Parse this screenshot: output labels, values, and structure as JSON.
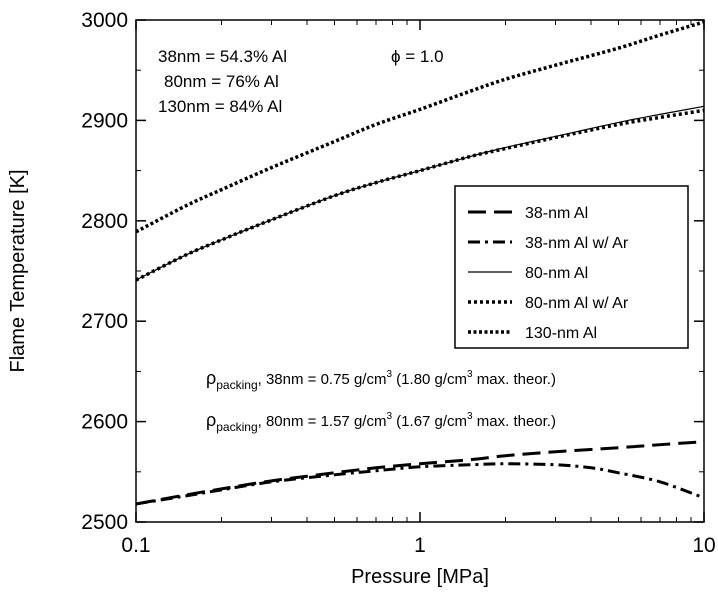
{
  "chart_data": {
    "type": "line",
    "xlabel": "Pressure [MPa]",
    "ylabel": "Flame Temperature [K]",
    "xscale": "log",
    "xlim": [
      0.1,
      10
    ],
    "ylim": [
      2500,
      3000
    ],
    "xticks": [
      0.1,
      1,
      10
    ],
    "xtick_labels": [
      "0.1",
      "1",
      "10"
    ],
    "yticks": [
      2500,
      2600,
      2700,
      2800,
      2900,
      3000
    ],
    "ytick_labels": [
      "2500",
      "2600",
      "2700",
      "2800",
      "2900",
      "3000"
    ],
    "grid": false,
    "legend_position": "right",
    "series": [
      {
        "name": "38-nm Al",
        "style": "long-dash",
        "x": [
          0.1,
          0.15,
          0.2,
          0.3,
          0.5,
          0.7,
          1,
          1.5,
          2,
          3,
          5,
          7,
          10
        ],
        "y": [
          2518,
          2527,
          2533,
          2541,
          2549,
          2554,
          2558,
          2562,
          2566,
          2570,
          2574,
          2577,
          2580
        ]
      },
      {
        "name": "38-nm Al w/ Ar",
        "style": "dash-dot",
        "x": [
          0.1,
          0.15,
          0.2,
          0.3,
          0.5,
          0.7,
          1,
          1.5,
          2,
          3,
          4,
          5,
          7,
          10
        ],
        "y": [
          2518,
          2526,
          2532,
          2540,
          2547,
          2551,
          2555,
          2557,
          2558,
          2557,
          2554,
          2549,
          2540,
          2524
        ]
      },
      {
        "name": "80-nm Al",
        "style": "thin-solid",
        "x": [
          0.1,
          0.15,
          0.2,
          0.3,
          0.5,
          0.7,
          1,
          1.5,
          2,
          3,
          5,
          7,
          10
        ],
        "y": [
          2741,
          2766,
          2781,
          2801,
          2825,
          2838,
          2850,
          2864,
          2873,
          2884,
          2898,
          2906,
          2914
        ]
      },
      {
        "name": "80-nm Al w/ Ar",
        "style": "dotted-thick",
        "x": [
          0.1,
          0.15,
          0.2,
          0.3,
          0.5,
          0.7,
          1,
          1.5,
          2,
          3,
          5,
          7,
          10
        ],
        "y": [
          2741,
          2766,
          2781,
          2801,
          2825,
          2838,
          2850,
          2864,
          2872,
          2883,
          2896,
          2903,
          2910
        ]
      },
      {
        "name": "130-nm Al",
        "style": "dotted",
        "x": [
          0.1,
          0.15,
          0.2,
          0.3,
          0.5,
          0.7,
          1,
          1.5,
          2,
          3,
          5,
          7,
          10
        ],
        "y": [
          2789,
          2815,
          2831,
          2853,
          2879,
          2896,
          2911,
          2929,
          2941,
          2955,
          2972,
          2985,
          2998
        ]
      }
    ],
    "annotations": {
      "composition_line1": "38nm = 54.3% Al",
      "composition_line2": "80nm = 76% Al",
      "composition_line3": "130nm = 84% Al",
      "phi": "ϕ = 1.0",
      "rho_symbol": "ρ",
      "rho_subscript": "packing",
      "packing1_size": ", 38nm = 0.75 g/cm",
      "packing1_exp": "3",
      "packing1_mid": " (1.80 g/cm",
      "packing1_exp2": "3",
      "packing1_end": " max. theor.)",
      "packing2_size": ", 80nm = 1.57 g/cm",
      "packing2_exp": "3",
      "packing2_mid": " (1.67 g/cm",
      "packing2_exp2": "3",
      "packing2_end": " max. theor.)"
    }
  }
}
